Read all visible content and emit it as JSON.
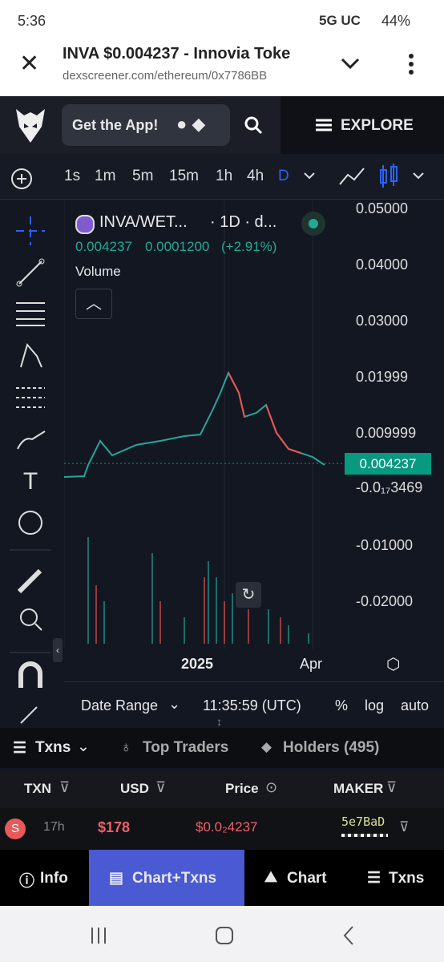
{
  "status_bar": {
    "time": "5:36",
    "network": "5G UC",
    "battery": "44%"
  },
  "browser_bar": {
    "title": "INVA $0.004237 - Innovia Toke",
    "url": "dexscreener.com/ethereum/0x7786BB"
  },
  "site_header": {
    "app_button": "Get the App!",
    "menu": "EXPLORE"
  },
  "timeframes": [
    "1s",
    "1m",
    "5m",
    "15m",
    "1h",
    "4h",
    "D"
  ],
  "chart": {
    "pair": "INVA/WET...",
    "interval": "· 1D · d...",
    "price": "0.004237",
    "change": "0.0001200",
    "change_pct": "(+2.91%)",
    "volume_label": "Volume",
    "price_axis": [
      "0.05000",
      "0.04000",
      "0.03000",
      "0.01999",
      "0.009999",
      "-0.0₁₇3469",
      "-0.01000",
      "-0.02000"
    ],
    "current_price_label": "0.004237",
    "time_axis": [
      "2025",
      "Apr"
    ]
  },
  "chart_controls": {
    "date_range": "Date Range",
    "clock": "11:35:59 (UTC)",
    "percent": "%",
    "log": "log",
    "auto": "auto"
  },
  "tabs": [
    "Txns",
    "Top Traders",
    "Holders (495)"
  ],
  "table": {
    "headers": [
      "TXN",
      "USD",
      "Price",
      "MAKER"
    ],
    "rows": [
      {
        "type": "S",
        "age": "17h",
        "usd": "$178",
        "price": "$0.0₂4237",
        "maker": "5e7BaD"
      }
    ]
  },
  "bottom_nav": [
    "Info",
    "Chart+Txns",
    "Chart",
    "Txns"
  ]
}
